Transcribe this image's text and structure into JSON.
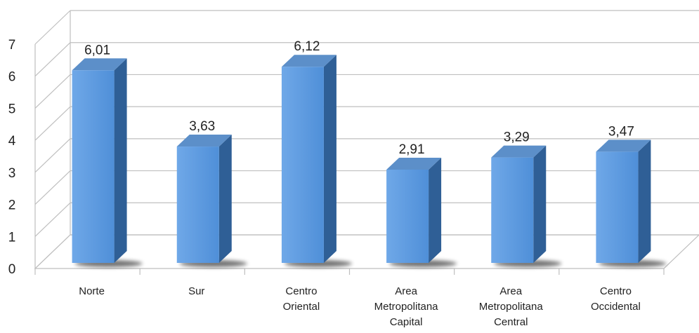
{
  "chart_data": {
    "type": "bar",
    "categories": [
      [
        "Norte"
      ],
      [
        "Sur"
      ],
      [
        "Centro",
        "Oriental"
      ],
      [
        "Area",
        "Metropolitana",
        "Capital"
      ],
      [
        "Area",
        "Metropolitana",
        "Central"
      ],
      [
        "Centro",
        "Occidental"
      ]
    ],
    "values": [
      6.01,
      3.63,
      6.12,
      2.91,
      3.29,
      3.47
    ],
    "data_labels": [
      "6,01",
      "3,63",
      "6,12",
      "2,91",
      "3,29",
      "3,47"
    ],
    "ylim": [
      0,
      7
    ],
    "yticks": [
      "0",
      "1",
      "2",
      "3",
      "4",
      "5",
      "6",
      "7"
    ],
    "grid": true,
    "legend": "none",
    "colors": {
      "bar_front": "#4f8fd8",
      "bar_front_light": "#6fa8e8",
      "bar_side": "#2f5f96",
      "bar_top": "#5c8fc9",
      "grid": "#bfbfbf"
    }
  }
}
